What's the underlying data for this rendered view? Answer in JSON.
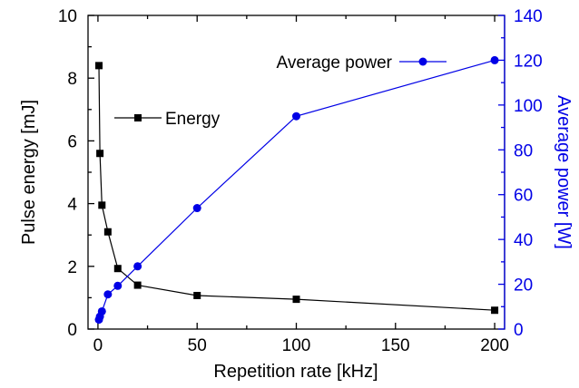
{
  "chart_data": {
    "type": "line",
    "xlabel": "Repetition rate [kHz]",
    "ylabel_left": "Pulse energy [mJ]",
    "ylabel_right": "Average power [W]",
    "xlim": [
      -5,
      205
    ],
    "ylim_left": [
      0,
      10
    ],
    "ylim_right": [
      0,
      140
    ],
    "x_ticks": [
      "0",
      "50",
      "100",
      "150",
      "200"
    ],
    "y_left_ticks": [
      "0",
      "2",
      "4",
      "6",
      "8",
      "10"
    ],
    "y_right_ticks": [
      "0",
      "20",
      "40",
      "60",
      "80",
      "100",
      "120",
      "140"
    ],
    "grid": false,
    "colors": {
      "energy": "#000000",
      "power": "#0000e6",
      "right_axis": "#0000e6"
    },
    "series": [
      {
        "name": "Energy",
        "axis": "left",
        "marker": "square",
        "x": [
          0.5,
          1,
          2,
          5,
          10,
          20,
          50,
          100,
          200
        ],
        "y": [
          8.4,
          5.6,
          3.95,
          3.1,
          1.93,
          1.4,
          1.07,
          0.95,
          0.6
        ]
      },
      {
        "name": "Average power",
        "axis": "right",
        "marker": "circle",
        "x": [
          0.5,
          1,
          2,
          5,
          10,
          20,
          50,
          100,
          200
        ],
        "y": [
          4.2,
          5.6,
          7.9,
          15.5,
          19.3,
          28,
          54,
          95,
          120
        ]
      }
    ]
  }
}
